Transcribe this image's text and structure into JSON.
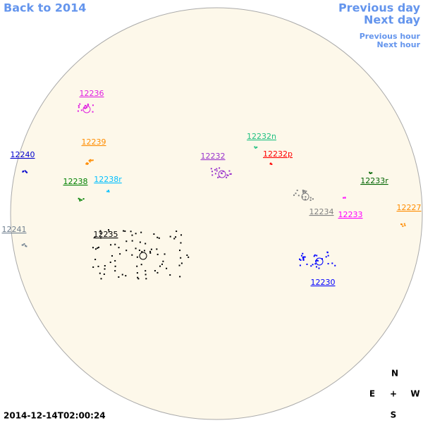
{
  "nav": {
    "back": "Back to 2014",
    "previous_day": "Previous day",
    "next_day": "Next day",
    "previous_hour": "Previous hour",
    "next_hour": "Next hour"
  },
  "regions": [
    {
      "label": "12236",
      "color": "#e020e0"
    },
    {
      "label": "12239",
      "color": "#ff8c00"
    },
    {
      "label": "12240",
      "color": "#0000cd"
    },
    {
      "label": "12238",
      "color": "#008000"
    },
    {
      "label": "12238r",
      "color": "#00bfff"
    },
    {
      "label": "12241",
      "color": "#708090"
    },
    {
      "label": "12235",
      "color": "#000000"
    },
    {
      "label": "12232n",
      "color": "#20c080"
    },
    {
      "label": "12232p",
      "color": "#ff0000"
    },
    {
      "label": "12232",
      "color": "#9932cc"
    },
    {
      "label": "12233r",
      "color": "#006400"
    },
    {
      "label": "12234",
      "color": "#808080"
    },
    {
      "label": "12233",
      "color": "#ff00ff"
    },
    {
      "label": "12227",
      "color": "#ff8c00"
    },
    {
      "label": "12230",
      "color": "#0000ff"
    }
  ],
  "compass": {
    "north": "N",
    "east": "E",
    "center": "+",
    "west": "W",
    "south": "S"
  },
  "timestamp": "2014-12-14T02:00:24"
}
